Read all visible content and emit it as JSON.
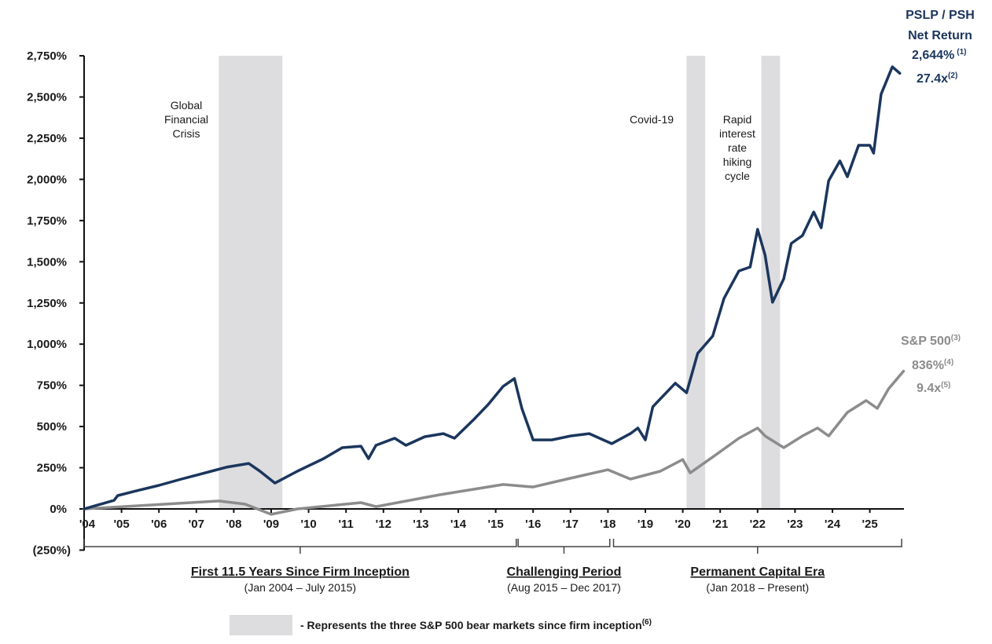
{
  "chart_data": {
    "type": "line",
    "title": "",
    "xlabel": "",
    "ylabel": "",
    "ylim": [
      -250,
      2750
    ],
    "xlim": [
      2004.0,
      2025.9
    ],
    "grid": false,
    "yticks": [
      {
        "value": 2750,
        "label": "2,750%"
      },
      {
        "value": 2500,
        "label": "2,500%"
      },
      {
        "value": 2250,
        "label": "2,250%"
      },
      {
        "value": 2000,
        "label": "2,000%"
      },
      {
        "value": 1750,
        "label": "1,750%"
      },
      {
        "value": 1500,
        "label": "1,500%"
      },
      {
        "value": 1250,
        "label": "1,250%"
      },
      {
        "value": 1000,
        "label": "1,000%"
      },
      {
        "value": 750,
        "label": "750%"
      },
      {
        "value": 500,
        "label": "500%"
      },
      {
        "value": 250,
        "label": "250%"
      },
      {
        "value": 0,
        "label": "0%"
      },
      {
        "value": -250,
        "label": "(250%)"
      }
    ],
    "xticks": [
      {
        "value": 2004,
        "label": "'04"
      },
      {
        "value": 2005,
        "label": "'05"
      },
      {
        "value": 2006,
        "label": "'06"
      },
      {
        "value": 2007,
        "label": "'07"
      },
      {
        "value": 2008,
        "label": "'08"
      },
      {
        "value": 2009,
        "label": "'09"
      },
      {
        "value": 2010,
        "label": "'10"
      },
      {
        "value": 2011,
        "label": "'11"
      },
      {
        "value": 2012,
        "label": "'12"
      },
      {
        "value": 2013,
        "label": "'13"
      },
      {
        "value": 2014,
        "label": "'14"
      },
      {
        "value": 2015,
        "label": "'15"
      },
      {
        "value": 2016,
        "label": "'16"
      },
      {
        "value": 2017,
        "label": "'17"
      },
      {
        "value": 2018,
        "label": "'18"
      },
      {
        "value": 2019,
        "label": "'19"
      },
      {
        "value": 2020,
        "label": "'20"
      },
      {
        "value": 2021,
        "label": "'21"
      },
      {
        "value": 2022,
        "label": "'22"
      },
      {
        "value": 2023,
        "label": "'23"
      },
      {
        "value": 2024,
        "label": "'24"
      },
      {
        "value": 2025,
        "label": "'25"
      }
    ],
    "series": [
      {
        "name": "PSLP / PSH Net Return",
        "color": "#1b365d",
        "x": [
          2004.0,
          2004.8,
          2004.9,
          2005.4,
          2006.0,
          2006.6,
          2007.4,
          2007.8,
          2008.4,
          2008.7,
          2009.1,
          2009.7,
          2010.4,
          2010.9,
          2011.4,
          2011.6,
          2011.8,
          2012.3,
          2012.6,
          2013.1,
          2013.6,
          2013.9,
          2014.4,
          2014.8,
          2015.2,
          2015.5,
          2015.7,
          2016.0,
          2016.5,
          2017.0,
          2017.5,
          2018.1,
          2018.6,
          2018.8,
          2019.0,
          2019.2,
          2019.8,
          2020.1,
          2020.4,
          2020.8,
          2021.1,
          2021.5,
          2021.8,
          2022.0,
          2022.2,
          2022.4,
          2022.7,
          2022.9,
          2023.2,
          2023.5,
          2023.7,
          2023.9,
          2024.2,
          2024.4,
          2024.7,
          2025.0,
          2025.1,
          2025.3,
          2025.6,
          2025.8
        ],
        "values": [
          0,
          52,
          81,
          110,
          143,
          181,
          229,
          253,
          276,
          229,
          157,
          229,
          305,
          372,
          381,
          305,
          386,
          429,
          386,
          438,
          457,
          429,
          539,
          634,
          744,
          791,
          610,
          419,
          419,
          443,
          457,
          396,
          457,
          491,
          419,
          620,
          763,
          705,
          944,
          1049,
          1277,
          1444,
          1468,
          1697,
          1540,
          1254,
          1397,
          1611,
          1659,
          1802,
          1706,
          1992,
          2112,
          2016,
          2207,
          2207,
          2159,
          2517,
          2683,
          2644
        ]
      },
      {
        "name": "S&P 500",
        "color": "#8c8c8c",
        "x": [
          2004.0,
          2007.6,
          2008.3,
          2009.0,
          2009.7,
          2011.4,
          2011.8,
          2013.5,
          2015.2,
          2016.0,
          2016.9,
          2018.0,
          2018.6,
          2019.4,
          2020.0,
          2020.2,
          2020.8,
          2021.5,
          2022.0,
          2022.2,
          2022.7,
          2023.2,
          2023.6,
          2023.9,
          2024.4,
          2024.9,
          2025.2,
          2025.5,
          2025.9
        ],
        "values": [
          0,
          48,
          29,
          -33,
          0,
          38,
          14,
          86,
          148,
          133,
          181,
          238,
          181,
          229,
          300,
          219,
          315,
          429,
          491,
          443,
          372,
          443,
          491,
          443,
          586,
          658,
          610,
          729,
          836
        ]
      }
    ],
    "shaded_regions": [
      {
        "start": 2007.6,
        "end": 2009.3,
        "label": "Global Financial Crisis"
      },
      {
        "start": 2020.1,
        "end": 2020.6,
        "label": "Covid-19"
      },
      {
        "start": 2022.1,
        "end": 2022.6,
        "label": "Rapid interest rate hiking cycle"
      }
    ],
    "end_labels": {
      "psh": {
        "line1": "PSLP / PSH",
        "line2": "Net Return",
        "pct": "2,644%",
        "pct_note": "(1)",
        "multiple": "27.4x",
        "multiple_note": "(2)"
      },
      "spx": {
        "name": "S&P 500",
        "name_note": "(3)",
        "pct": "836%",
        "pct_note": "(4)",
        "multiple": "9.4x",
        "multiple_note": "(5)"
      }
    },
    "periods": [
      {
        "title": "First 11.5 Years Since Firm Inception",
        "subtitle": "(Jan 2004 – July 2015)",
        "start": 2004.0,
        "end": 2015.55
      },
      {
        "title": "Challenging Period",
        "subtitle": "(Aug 2015 – Dec 2017)",
        "start": 2015.6,
        "end": 2018.05
      },
      {
        "title": "Permanent Capital Era",
        "subtitle": "(Jan 2018 – Present)",
        "start": 2018.15,
        "end": 2025.85
      }
    ],
    "legend": {
      "text": "- Represents the three S&P 500 bear markets since firm inception",
      "note": "(6)",
      "placement": "bottom-center",
      "swatch_color": "#dddddf"
    }
  }
}
